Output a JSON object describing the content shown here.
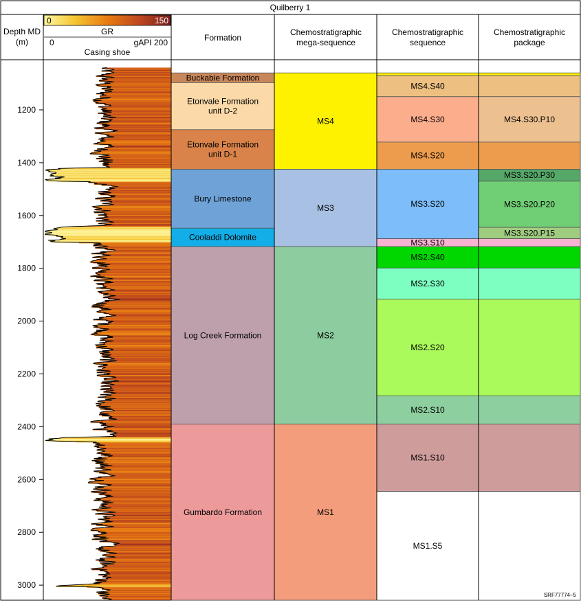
{
  "title": "Quilberry 1",
  "figure_id": "SRF77774–5",
  "header": {
    "depth_label": [
      "Depth MD",
      "(m)"
    ],
    "gr_scale_min": "0",
    "gr_scale_max": "150",
    "gr_track_label": "GR",
    "gr_axis_min": "0",
    "gr_axis_unit_max": "gAPI 200",
    "casing_label": "Casing shoe",
    "formation_label": "Formation",
    "mega_label": [
      "Chemostratigraphic",
      "mega-sequence"
    ],
    "sequence_label": [
      "Chemostratigraphic",
      "sequence"
    ],
    "package_label": [
      "Chemostratigraphic",
      "package"
    ]
  },
  "colors": {
    "gr_scale": [
      "#fff7a0",
      "#f4c430",
      "#e87b12",
      "#c0481e",
      "#7a1e1e"
    ]
  },
  "chart_data": {
    "type": "strip-log",
    "depth_range_m": [
      1040,
      3060
    ],
    "depth_ticks": [
      1200,
      1400,
      1600,
      1800,
      2000,
      2200,
      2400,
      2600,
      2800,
      3000
    ],
    "gr_range_api": [
      0,
      200
    ],
    "gr_color_range_api": [
      0,
      150
    ],
    "formations": [
      {
        "name": "Buckabie Formation",
        "top": 1060,
        "base": 1097,
        "color": "#c8875a"
      },
      {
        "name": "Etonvale Formation unit D-2",
        "top": 1097,
        "base": 1275,
        "color": "#fcd9a8"
      },
      {
        "name": "Etonvale Formation unit D-1",
        "top": 1275,
        "base": 1425,
        "color": "#d9834a"
      },
      {
        "name": "Bury Limestone",
        "top": 1425,
        "base": 1648,
        "color": "#6fa3d8"
      },
      {
        "name": "Cooladdi Dolomite",
        "top": 1648,
        "base": 1718,
        "color": "#13aee8"
      },
      {
        "name": "Log Creek Formation",
        "top": 1718,
        "base": 2390,
        "color": "#bea0ad"
      },
      {
        "name": "Gumbardo Formation",
        "top": 2390,
        "base": 3060,
        "color": "#ec9a9a"
      }
    ],
    "mega_sequences": [
      {
        "name": "MS4",
        "top": 1060,
        "base": 1425,
        "color": "#fff200"
      },
      {
        "name": "MS3",
        "top": 1425,
        "base": 1718,
        "color": "#a8c0e3"
      },
      {
        "name": "MS2",
        "top": 1718,
        "base": 2390,
        "color": "#8dcc9e"
      },
      {
        "name": "MS1",
        "top": 2390,
        "base": 3060,
        "color": "#f49d7c"
      }
    ],
    "sequences": [
      {
        "name": "",
        "top": 1060,
        "base": 1070,
        "color": "#fff200"
      },
      {
        "name": "MS4.S40",
        "top": 1070,
        "base": 1150,
        "color": "#edc081"
      },
      {
        "name": "MS4.S30",
        "top": 1150,
        "base": 1322,
        "color": "#fcad8c"
      },
      {
        "name": "MS4.S20",
        "top": 1322,
        "base": 1425,
        "color": "#ed9c4d"
      },
      {
        "name": "MS3.S20",
        "top": 1425,
        "base": 1688,
        "color": "#7dbdfa"
      },
      {
        "name": "MS3.S10",
        "top": 1688,
        "base": 1718,
        "color": "#f8b3d3"
      },
      {
        "name": "MS2.S40",
        "top": 1718,
        "base": 1799,
        "color": "#00d700"
      },
      {
        "name": "MS2.S30",
        "top": 1799,
        "base": 1917,
        "color": "#7dffc2"
      },
      {
        "name": "MS2.S20",
        "top": 1917,
        "base": 2283,
        "color": "#a9fa5a"
      },
      {
        "name": "MS2.S10",
        "top": 2283,
        "base": 2390,
        "color": "#8dcf9e"
      },
      {
        "name": "MS1.S10",
        "top": 2390,
        "base": 2645,
        "color": "#cf9c9c"
      },
      {
        "name": "MS1.S5",
        "top": 2645,
        "base": 3060,
        "color": "#ffffff"
      }
    ],
    "packages": [
      {
        "name": "",
        "top": 1060,
        "base": 1070,
        "color": "#fff200"
      },
      {
        "name": "",
        "top": 1070,
        "base": 1150,
        "color": "#edc081"
      },
      {
        "name": "MS4.S30.P10",
        "top": 1150,
        "base": 1322,
        "color": "#edc08f"
      },
      {
        "name": "",
        "top": 1322,
        "base": 1425,
        "color": "#ed9c4d"
      },
      {
        "name": "MS3.S20.P30",
        "top": 1425,
        "base": 1470,
        "color": "#55a868"
      },
      {
        "name": "MS3.S20.P20",
        "top": 1470,
        "base": 1645,
        "color": "#70cf75"
      },
      {
        "name": "MS3.S20.P15",
        "top": 1645,
        "base": 1688,
        "color": "#a0cc80"
      },
      {
        "name": "",
        "top": 1688,
        "base": 1718,
        "color": "#f8b3d3"
      },
      {
        "name": "",
        "top": 1718,
        "base": 1799,
        "color": "#00d700"
      },
      {
        "name": "",
        "top": 1799,
        "base": 1917,
        "color": "#7dffc2"
      },
      {
        "name": "",
        "top": 1917,
        "base": 2283,
        "color": "#a9fa5a"
      },
      {
        "name": "",
        "top": 2283,
        "base": 2390,
        "color": "#8dcf9e"
      },
      {
        "name": "",
        "top": 2390,
        "base": 2645,
        "color": "#cf9c9c"
      },
      {
        "name": "",
        "top": 2645,
        "base": 3060,
        "color": "#ffffff"
      }
    ],
    "gr_log": {
      "depth_step_m": 2,
      "baseline_api": 95,
      "low_gr_intervals": [
        {
          "top": 1420,
          "base": 1470,
          "api": 15
        },
        {
          "top": 1640,
          "base": 1700,
          "api": 12
        },
        {
          "top": 2440,
          "base": 2455,
          "api": 20
        },
        {
          "top": 2995,
          "base": 3005,
          "api": 25
        }
      ]
    }
  }
}
